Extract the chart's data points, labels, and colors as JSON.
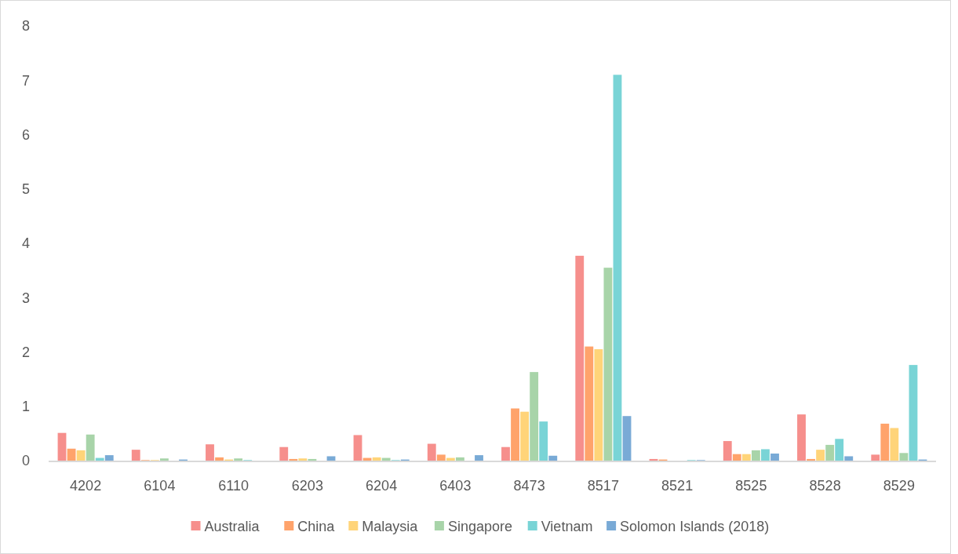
{
  "chart_data": {
    "type": "bar",
    "categories": [
      "4202",
      "6104",
      "6110",
      "6203",
      "6204",
      "6403",
      "8473",
      "8517",
      "8521",
      "8525",
      "8528",
      "8529"
    ],
    "series": [
      {
        "name": "Australia",
        "color": "#f68f8c",
        "values": [
          0.51,
          0.2,
          0.3,
          0.25,
          0.47,
          0.31,
          0.25,
          3.77,
          0.03,
          0.36,
          0.85,
          0.11
        ]
      },
      {
        "name": "China",
        "color": "#ffa36b",
        "values": [
          0.22,
          0.01,
          0.06,
          0.03,
          0.05,
          0.11,
          0.96,
          2.1,
          0.02,
          0.12,
          0.03,
          0.68
        ]
      },
      {
        "name": "Malaysia",
        "color": "#ffd479",
        "values": [
          0.19,
          0.01,
          0.02,
          0.04,
          0.06,
          0.05,
          0.9,
          2.05,
          0,
          0.12,
          0.2,
          0.6
        ]
      },
      {
        "name": "Singapore",
        "color": "#a8d4a9",
        "values": [
          0.48,
          0.04,
          0.04,
          0.03,
          0.05,
          0.06,
          1.63,
          3.55,
          0,
          0.19,
          0.29,
          0.14
        ]
      },
      {
        "name": "Vietnam",
        "color": "#79d4d6",
        "values": [
          0.05,
          0,
          0.01,
          0,
          0.01,
          0,
          0.72,
          7.1,
          0.01,
          0.21,
          0.4,
          1.76
        ]
      },
      {
        "name": "Solomon Islands (2018)",
        "color": "#79aad6",
        "values": [
          0.1,
          0.02,
          0,
          0.08,
          0.02,
          0.1,
          0.09,
          0.82,
          0.01,
          0.13,
          0.08,
          0.02
        ]
      }
    ],
    "ylim": [
      0,
      8
    ],
    "yticks": [
      0,
      1,
      2,
      3,
      4,
      5,
      6,
      7,
      8
    ],
    "grid": false,
    "legend": "bottom"
  }
}
